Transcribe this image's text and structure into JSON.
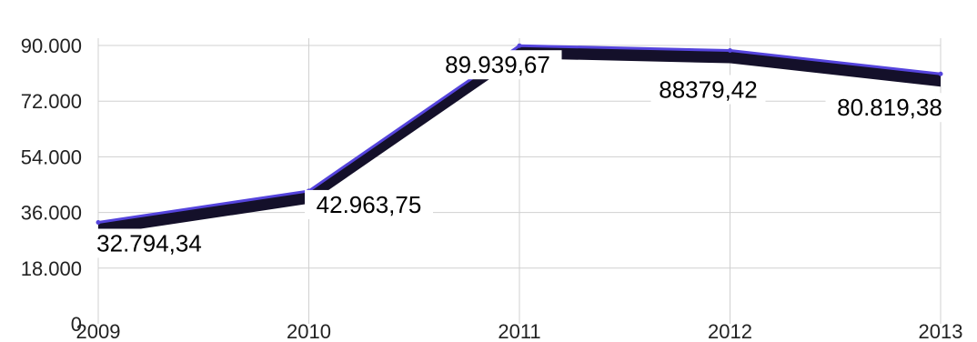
{
  "chart_data": {
    "type": "line",
    "x": [
      "2009",
      "2010",
      "2011",
      "2012",
      "2013"
    ],
    "values": [
      32794.34,
      42963.75,
      89939.67,
      88379.42,
      80819.38
    ],
    "data_labels": [
      "32.794,34",
      "42.963,75",
      "89.939,67",
      "88379,42",
      "80.819,38"
    ],
    "ytick_labels": [
      "0",
      "18.000",
      "36.000",
      "54.000",
      "72.000",
      "90.000"
    ],
    "ytick_values": [
      0,
      18000,
      36000,
      54000,
      72000,
      90000
    ],
    "ylim": [
      0,
      90000
    ],
    "grid": true,
    "style": "3d-ribbon",
    "colors": {
      "line": "#5544dd",
      "ribbon": "#14102a",
      "grid": "#d0d0d0"
    }
  }
}
